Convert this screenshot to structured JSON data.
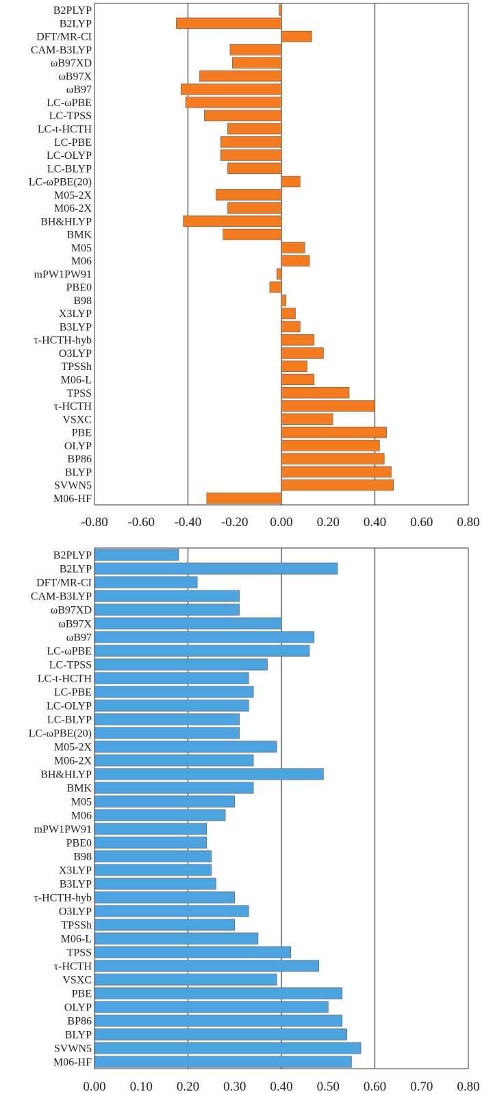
{
  "chart_data": [
    {
      "type": "bar",
      "orientation": "horizontal",
      "title": "",
      "xlabel": "",
      "ylabel": "",
      "color": "#F47B20",
      "xlim": [
        -0.8,
        0.8
      ],
      "xticks": [
        "-0.80",
        "-0.60",
        "-0.40",
        "-0.20",
        "0.00",
        "0.20",
        "0.40",
        "0.60",
        "0.80"
      ],
      "reference_lines": [
        -0.4,
        0.0,
        0.4
      ],
      "categories": [
        "B2PLYP",
        "B2LYP",
        "DFT/MR-CI",
        "CAM-B3LYP",
        "ωB97XD",
        "ωB97X",
        "ωB97",
        "LC-ωPBE",
        "LC-TPSS",
        "LC-t-HCTH",
        "LC-PBE",
        "LC-OLYP",
        "LC-BLYP",
        "LC-ωPBE(20)",
        "M05-2X",
        "M06-2X",
        "BH&HLYP",
        "BMK",
        "M05",
        "M06",
        "mPW1PW91",
        "PBE0",
        "B98",
        "X3LYP",
        "B3LYP",
        "τ-HCTH-hyb",
        "O3LYP",
        "TPSSh",
        "M06-L",
        "TPSS",
        "τ-HCTH",
        "VSXC",
        "PBE",
        "OLYP",
        "BP86",
        "BLYP",
        "SVWN5",
        "M06-HF"
      ],
      "values": [
        -0.01,
        -0.45,
        0.13,
        -0.22,
        -0.21,
        -0.35,
        -0.43,
        -0.41,
        -0.33,
        -0.23,
        -0.26,
        -0.26,
        -0.23,
        0.08,
        -0.28,
        -0.23,
        -0.42,
        -0.25,
        0.1,
        0.12,
        -0.02,
        -0.05,
        0.02,
        0.06,
        0.08,
        0.14,
        0.18,
        0.11,
        0.14,
        0.29,
        0.4,
        0.22,
        0.45,
        0.42,
        0.44,
        0.47,
        0.48,
        -0.32
      ]
    },
    {
      "type": "bar",
      "orientation": "horizontal",
      "title": "",
      "xlabel": "",
      "ylabel": "",
      "color": "#4DA3E0",
      "xlim": [
        0.0,
        0.8
      ],
      "xticks": [
        "0.00",
        "0.10",
        "0.20",
        "0.30",
        "0.40",
        "0.50",
        "0.60",
        "0.70",
        "0.80"
      ],
      "reference_lines": [
        0.2,
        0.4,
        0.6
      ],
      "categories": [
        "B2PLYP",
        "B2LYP",
        "DFT/MR-CI",
        "CAM-B3LYP",
        "ωB97XD",
        "ωB97X",
        "ωB97",
        "LC-ωPBE",
        "LC-TPSS",
        "LC-t-HCTH",
        "LC-PBE",
        "LC-OLYP",
        "LC-BLYP",
        "LC-ωPBE(20)",
        "M05-2X",
        "M06-2X",
        "BH&HLYP",
        "BMK",
        "M05",
        "M06",
        "mPW1PW91",
        "PBE0",
        "B98",
        "X3LYP",
        "B3LYP",
        "τ-HCTH-hyb",
        "O3LYP",
        "TPSSh",
        "M06-L",
        "TPSS",
        "τ-HCTH",
        "VSXC",
        "PBE",
        "OLYP",
        "BP86",
        "BLYP",
        "SVWN5",
        "M06-HF"
      ],
      "values": [
        0.18,
        0.52,
        0.22,
        0.31,
        0.31,
        0.4,
        0.47,
        0.46,
        0.37,
        0.33,
        0.34,
        0.33,
        0.31,
        0.31,
        0.39,
        0.34,
        0.49,
        0.34,
        0.3,
        0.28,
        0.24,
        0.24,
        0.25,
        0.25,
        0.26,
        0.3,
        0.33,
        0.3,
        0.35,
        0.42,
        0.48,
        0.39,
        0.53,
        0.5,
        0.53,
        0.54,
        0.57,
        0.55
      ]
    }
  ]
}
